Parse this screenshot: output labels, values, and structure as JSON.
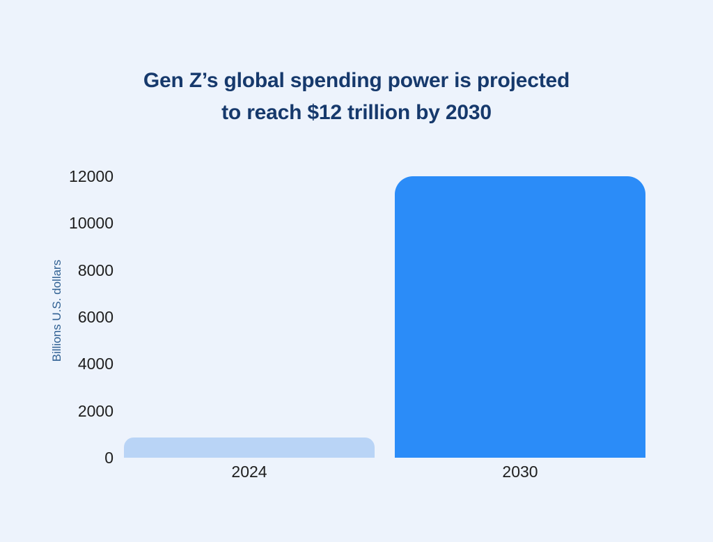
{
  "page": {
    "background": "#edf3fc"
  },
  "header": {
    "title_line1": "Gen Z’s global spending power is projected",
    "title_line2": "to reach $12 trillion by 2030",
    "title_color": "#16396c"
  },
  "chart_data": {
    "type": "bar",
    "title": "Gen Z’s global spending power is projected to reach $12 trillion by 2030",
    "categories": [
      "2024",
      "2030"
    ],
    "values": [
      860,
      12000
    ],
    "xlabel": "",
    "ylabel": "Billions U.S. dollars",
    "ylim": [
      0,
      12000
    ],
    "yticks": [
      0,
      2000,
      4000,
      6000,
      8000,
      10000,
      12000
    ],
    "grid": false,
    "legend": "none",
    "bar_colors": [
      "#b9d4f6",
      "#2b8cf8"
    ],
    "tick_label_color": "#1e1e1e",
    "axis_label_color": "#2e5f92"
  }
}
